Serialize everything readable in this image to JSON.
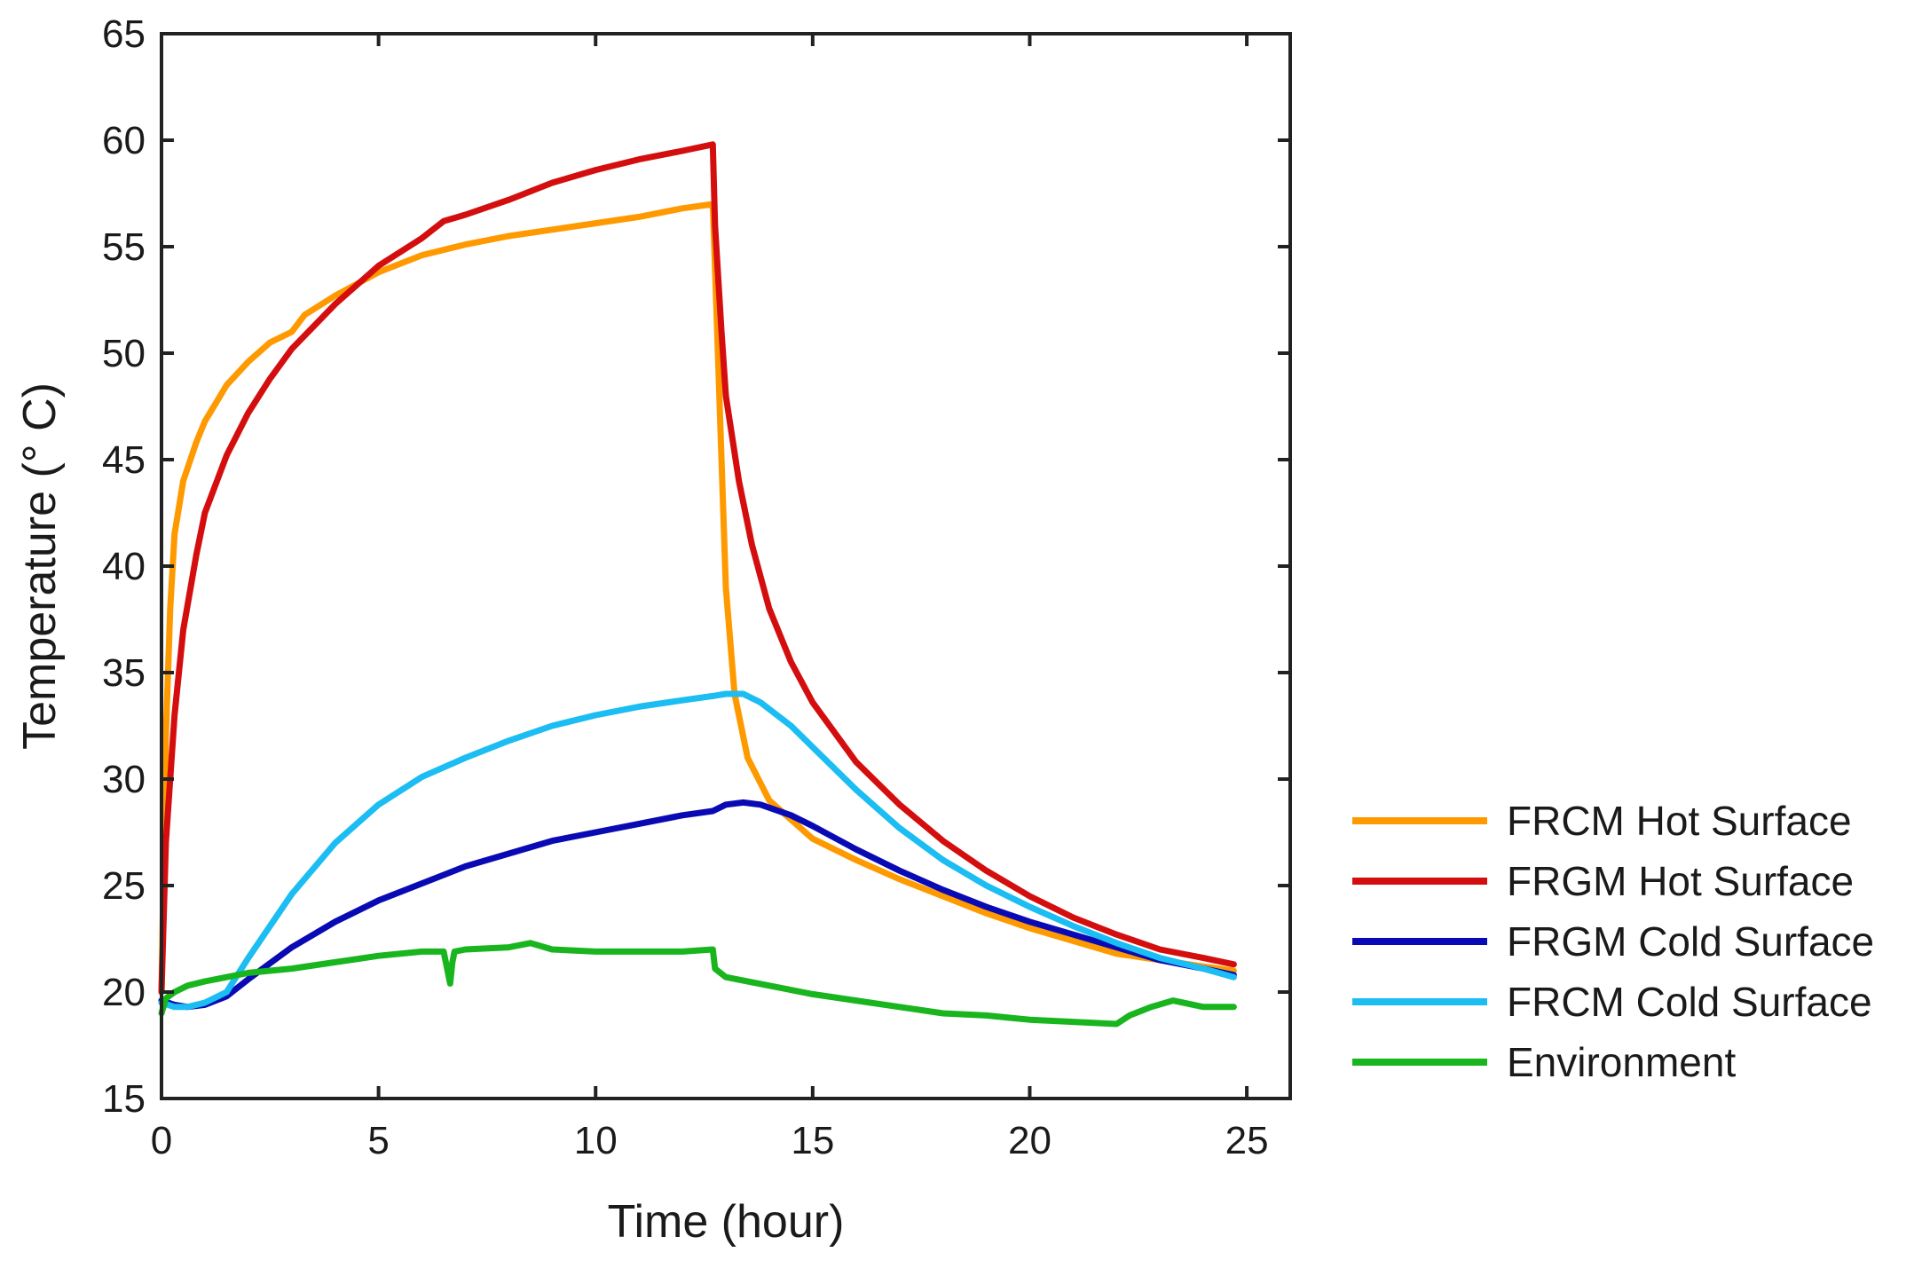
{
  "chart_data": {
    "type": "line",
    "title": "",
    "xlabel": "Time (hour)",
    "ylabel": "Temperature (° C)",
    "xlim": [
      0,
      26
    ],
    "ylim": [
      15,
      65
    ],
    "xticks": [
      0,
      5,
      10,
      15,
      20,
      25
    ],
    "yticks": [
      15,
      20,
      25,
      30,
      35,
      40,
      45,
      50,
      55,
      60,
      65
    ],
    "grid": false,
    "legend_position": "right",
    "series": [
      {
        "name": "FRCM Hot Surface",
        "color": "#FF9900",
        "x": [
          0,
          0.1,
          0.2,
          0.3,
          0.5,
          0.8,
          1.0,
          1.5,
          2.0,
          2.5,
          3.0,
          3.3,
          4.0,
          5.0,
          6.0,
          7.0,
          8.0,
          9.0,
          10.0,
          11.0,
          12.0,
          12.7,
          12.75,
          12.9,
          13.0,
          13.2,
          13.5,
          14.0,
          15.0,
          16.0,
          17.0,
          18.0,
          19.0,
          20.0,
          21.0,
          22.0,
          23.0,
          24.0,
          24.7
        ],
        "y": [
          20,
          32,
          38,
          41.5,
          44,
          45.8,
          46.8,
          48.5,
          49.6,
          50.5,
          51.0,
          51.8,
          52.7,
          53.8,
          54.6,
          55.1,
          55.5,
          55.8,
          56.1,
          56.4,
          56.8,
          57.0,
          54.0,
          45.0,
          39.0,
          34.0,
          31.0,
          29.0,
          27.2,
          26.2,
          25.3,
          24.5,
          23.7,
          23.0,
          22.4,
          21.8,
          21.5,
          21.2,
          21.0
        ]
      },
      {
        "name": "FRGM Hot Surface",
        "color": "#D40E0E",
        "x": [
          0,
          0.1,
          0.3,
          0.5,
          0.8,
          1.0,
          1.5,
          2.0,
          2.5,
          3.0,
          4.0,
          5.0,
          6.0,
          6.5,
          7.0,
          8.0,
          9.0,
          10.0,
          11.0,
          12.0,
          12.7,
          12.75,
          12.9,
          13.0,
          13.3,
          13.6,
          14.0,
          14.5,
          15.0,
          16.0,
          17.0,
          18.0,
          19.0,
          20.0,
          21.0,
          22.0,
          23.0,
          24.0,
          24.7
        ],
        "y": [
          20,
          27,
          33,
          37,
          40.5,
          42.5,
          45.2,
          47.2,
          48.8,
          50.2,
          52.3,
          54.1,
          55.4,
          56.2,
          56.5,
          57.2,
          58.0,
          58.6,
          59.1,
          59.5,
          59.8,
          56.0,
          51.0,
          48.0,
          44.0,
          41.0,
          38.0,
          35.5,
          33.6,
          30.8,
          28.8,
          27.1,
          25.7,
          24.5,
          23.5,
          22.7,
          22.0,
          21.6,
          21.3
        ]
      },
      {
        "name": "FRGM Cold Surface",
        "color": "#0A0AB4",
        "x": [
          0,
          0.3,
          0.6,
          1.0,
          1.5,
          2.0,
          3.0,
          4.0,
          5.0,
          6.0,
          7.0,
          8.0,
          9.0,
          10.0,
          11.0,
          12.0,
          12.7,
          13.0,
          13.4,
          13.8,
          14.5,
          15.0,
          16.0,
          17.0,
          18.0,
          19.0,
          20.0,
          21.0,
          22.0,
          23.0,
          24.0,
          24.7
        ],
        "y": [
          19.6,
          19.4,
          19.3,
          19.4,
          19.8,
          20.6,
          22.1,
          23.3,
          24.3,
          25.1,
          25.9,
          26.5,
          27.1,
          27.5,
          27.9,
          28.3,
          28.5,
          28.8,
          28.9,
          28.8,
          28.3,
          27.8,
          26.7,
          25.7,
          24.8,
          24.0,
          23.3,
          22.7,
          22.1,
          21.5,
          21.1,
          20.8
        ]
      },
      {
        "name": "FRCM Cold Surface",
        "color": "#1BBDF2",
        "x": [
          0,
          0.3,
          0.6,
          1.0,
          1.5,
          2.0,
          3.0,
          4.0,
          5.0,
          6.0,
          7.0,
          8.0,
          9.0,
          10.0,
          11.0,
          12.0,
          12.7,
          13.0,
          13.4,
          13.8,
          14.5,
          15.0,
          16.0,
          17.0,
          18.0,
          19.0,
          20.0,
          21.0,
          22.0,
          23.0,
          24.0,
          24.7
        ],
        "y": [
          19.5,
          19.3,
          19.3,
          19.5,
          20.0,
          21.6,
          24.6,
          27.0,
          28.8,
          30.1,
          31.0,
          31.8,
          32.5,
          33.0,
          33.4,
          33.7,
          33.9,
          34.0,
          34.0,
          33.6,
          32.5,
          31.5,
          29.5,
          27.7,
          26.2,
          25.0,
          24.0,
          23.1,
          22.3,
          21.6,
          21.1,
          20.7
        ]
      },
      {
        "name": "Environment",
        "color": "#19B51E",
        "x": [
          0,
          0.1,
          0.3,
          0.6,
          1.0,
          1.5,
          2.0,
          3.0,
          4.0,
          5.0,
          6.0,
          6.5,
          6.65,
          6.7,
          6.75,
          7.0,
          8.0,
          8.5,
          9.0,
          10.0,
          11.0,
          12.0,
          12.7,
          12.75,
          13.0,
          14.0,
          15.0,
          16.0,
          17.0,
          18.0,
          19.0,
          20.0,
          21.0,
          22.0,
          22.3,
          22.8,
          23.3,
          24.0,
          24.7
        ],
        "y": [
          19.0,
          19.7,
          20.0,
          20.3,
          20.5,
          20.7,
          20.9,
          21.1,
          21.4,
          21.7,
          21.9,
          21.9,
          20.4,
          21.4,
          21.9,
          22.0,
          22.1,
          22.3,
          22.0,
          21.9,
          21.9,
          21.9,
          22.0,
          21.1,
          20.7,
          20.3,
          19.9,
          19.6,
          19.3,
          19.0,
          18.9,
          18.7,
          18.6,
          18.5,
          18.9,
          19.3,
          19.6,
          19.3,
          19.3
        ]
      }
    ]
  }
}
